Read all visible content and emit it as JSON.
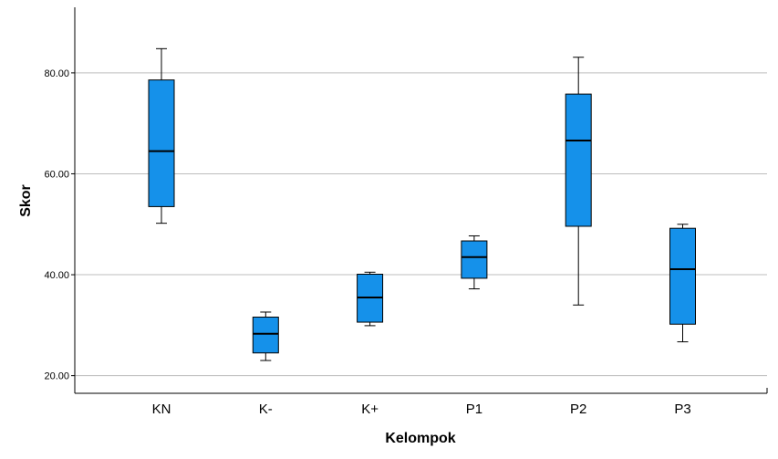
{
  "chart_data": {
    "type": "box",
    "title": "",
    "xlabel": "Kelompok",
    "ylabel": "Skor",
    "ylim": [
      16.5,
      93
    ],
    "yticks": [
      20,
      40,
      60,
      80
    ],
    "ytick_labels": [
      "20.00",
      "40.00",
      "60.00",
      "80.00"
    ],
    "grid": true,
    "box_color": "#1591EA",
    "categories": [
      "KN",
      "K-",
      "K+",
      "P1",
      "P2",
      "P3"
    ],
    "boxes": [
      {
        "category": "KN",
        "min": 50.2,
        "q1": 53.5,
        "median": 64.5,
        "q3": 78.6,
        "max": 84.8
      },
      {
        "category": "K-",
        "min": 23.0,
        "q1": 24.5,
        "median": 28.3,
        "q3": 31.6,
        "max": 32.6
      },
      {
        "category": "K+",
        "min": 29.9,
        "q1": 30.6,
        "median": 35.5,
        "q3": 40.1,
        "max": 40.5
      },
      {
        "category": "P1",
        "min": 37.2,
        "q1": 39.3,
        "median": 43.5,
        "q3": 46.7,
        "max": 47.7
      },
      {
        "category": "P2",
        "min": 34.0,
        "q1": 49.6,
        "median": 66.6,
        "q3": 75.8,
        "max": 83.1
      },
      {
        "category": "P3",
        "min": 26.7,
        "q1": 30.2,
        "median": 41.1,
        "q3": 49.2,
        "max": 50.0
      }
    ]
  }
}
